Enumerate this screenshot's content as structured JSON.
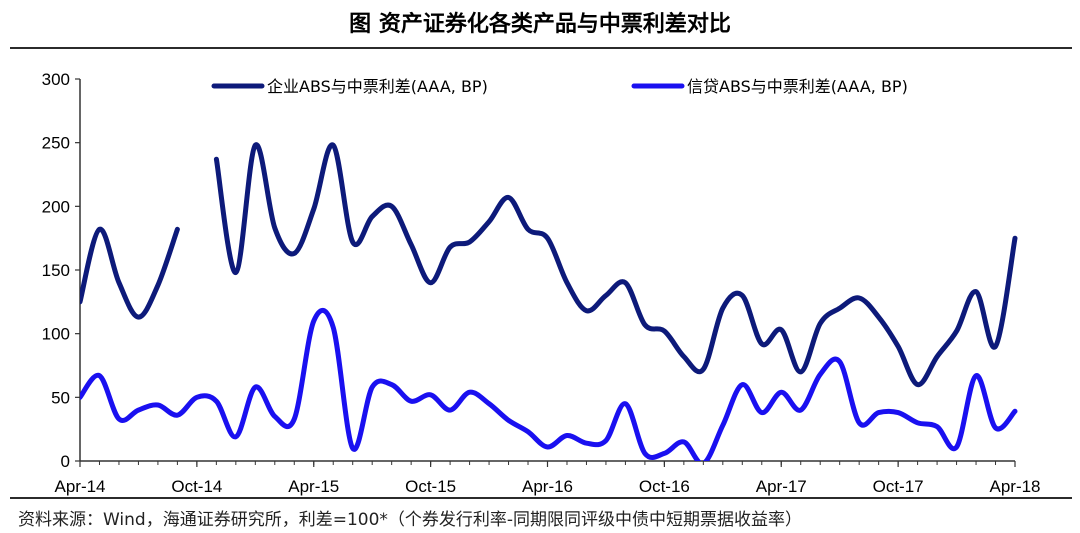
{
  "title": "图  资产证券化各类产品与中票利差对比",
  "source": "资料来源：Wind，海通证券研究所，利差=100*（个券发行利率-同期限同评级中债中短期票据收益率）",
  "chart_data": {
    "type": "line",
    "title": "图  资产证券化各类产品与中票利差对比",
    "ylim": [
      0,
      300
    ],
    "yticks": [
      0,
      50,
      100,
      150,
      200,
      250,
      300
    ],
    "xlim": [
      "2014-04",
      "2018-04"
    ],
    "xticks": [
      "Apr-14",
      "Oct-14",
      "Apr-15",
      "Oct-15",
      "Apr-16",
      "Oct-16",
      "Apr-17",
      "Oct-17",
      "Apr-18"
    ],
    "xtick_dates": [
      "2014-04",
      "2014-10",
      "2015-04",
      "2015-10",
      "2016-04",
      "2016-10",
      "2017-04",
      "2017-10",
      "2018-04"
    ],
    "grid": false,
    "legend": "top",
    "series": [
      {
        "name": "企业ABS与中票利差(AAA, BP)",
        "color": "#0d1a7a",
        "segments": [
          [
            [
              "2014-04",
              125
            ],
            [
              "2014-05",
              182
            ],
            [
              "2014-06",
              140
            ],
            [
              "2014-07",
              113
            ],
            [
              "2014-08",
              138
            ],
            [
              "2014-09",
              182
            ]
          ],
          [
            [
              "2014-11",
              237
            ],
            [
              "2014-12",
              148
            ],
            [
              "2015-01",
              248
            ],
            [
              "2015-02",
              183
            ],
            [
              "2015-03",
              163
            ],
            [
              "2015-04",
              198
            ],
            [
              "2015-05",
              248
            ],
            [
              "2015-06",
              172
            ],
            [
              "2015-07",
              192
            ],
            [
              "2015-08",
              200
            ],
            [
              "2015-09",
              170
            ],
            [
              "2015-10",
              140
            ],
            [
              "2015-11",
              168
            ],
            [
              "2015-12",
              172
            ],
            [
              "2016-01",
              188
            ],
            [
              "2016-02",
              207
            ],
            [
              "2016-03",
              182
            ],
            [
              "2016-04",
              175
            ],
            [
              "2016-05",
              140
            ],
            [
              "2016-06",
              118
            ],
            [
              "2016-07",
              130
            ],
            [
              "2016-08",
              140
            ],
            [
              "2016-09",
              107
            ],
            [
              "2016-10",
              102
            ],
            [
              "2016-11",
              82
            ],
            [
              "2016-12",
              72
            ],
            [
              "2017-01",
              120
            ],
            [
              "2017-02",
              130
            ],
            [
              "2017-03",
              92
            ],
            [
              "2017-04",
              103
            ],
            [
              "2017-05",
              70
            ],
            [
              "2017-06",
              108
            ],
            [
              "2017-07",
              120
            ],
            [
              "2017-08",
              128
            ],
            [
              "2017-09",
              113
            ],
            [
              "2017-10",
              90
            ],
            [
              "2017-11",
              60
            ],
            [
              "2017-12",
              82
            ],
            [
              "2018-01",
              102
            ],
            [
              "2018-02",
              133
            ],
            [
              "2018-03",
              90
            ],
            [
              "2018-04",
              175
            ]
          ]
        ]
      },
      {
        "name": "信贷ABS与中票利差(AAA, BP)",
        "color": "#1a10f0",
        "segments": [
          [
            [
              "2014-04",
              50
            ],
            [
              "2014-05",
              67
            ],
            [
              "2014-06",
              33
            ],
            [
              "2014-07",
              40
            ],
            [
              "2014-08",
              44
            ],
            [
              "2014-09",
              36
            ],
            [
              "2014-10",
              50
            ],
            [
              "2014-11",
              47
            ],
            [
              "2014-12",
              19
            ],
            [
              "2015-01",
              58
            ],
            [
              "2015-02",
              35
            ],
            [
              "2015-03",
              33
            ],
            [
              "2015-04",
              110
            ],
            [
              "2015-05",
              105
            ],
            [
              "2015-06",
              10
            ],
            [
              "2015-07",
              58
            ],
            [
              "2015-08",
              60
            ],
            [
              "2015-09",
              47
            ],
            [
              "2015-10",
              52
            ],
            [
              "2015-11",
              40
            ],
            [
              "2015-12",
              54
            ],
            [
              "2016-01",
              45
            ],
            [
              "2016-02",
              32
            ],
            [
              "2016-03",
              23
            ],
            [
              "2016-04",
              11
            ],
            [
              "2016-05",
              20
            ],
            [
              "2016-06",
              14
            ],
            [
              "2016-07",
              16
            ],
            [
              "2016-08",
              45
            ],
            [
              "2016-09",
              6
            ],
            [
              "2016-10",
              6
            ],
            [
              "2016-11",
              15
            ],
            [
              "2016-12",
              -2
            ],
            [
              "2017-01",
              28
            ],
            [
              "2017-02",
              60
            ],
            [
              "2017-03",
              38
            ],
            [
              "2017-04",
              54
            ],
            [
              "2017-05",
              40
            ],
            [
              "2017-06",
              68
            ],
            [
              "2017-07",
              78
            ],
            [
              "2017-08",
              30
            ],
            [
              "2017-09",
              38
            ],
            [
              "2017-10",
              38
            ],
            [
              "2017-11",
              30
            ],
            [
              "2017-12",
              27
            ],
            [
              "2018-01",
              11
            ],
            [
              "2018-02",
              67
            ],
            [
              "2018-03",
              26
            ],
            [
              "2018-04",
              39
            ]
          ]
        ]
      }
    ]
  }
}
